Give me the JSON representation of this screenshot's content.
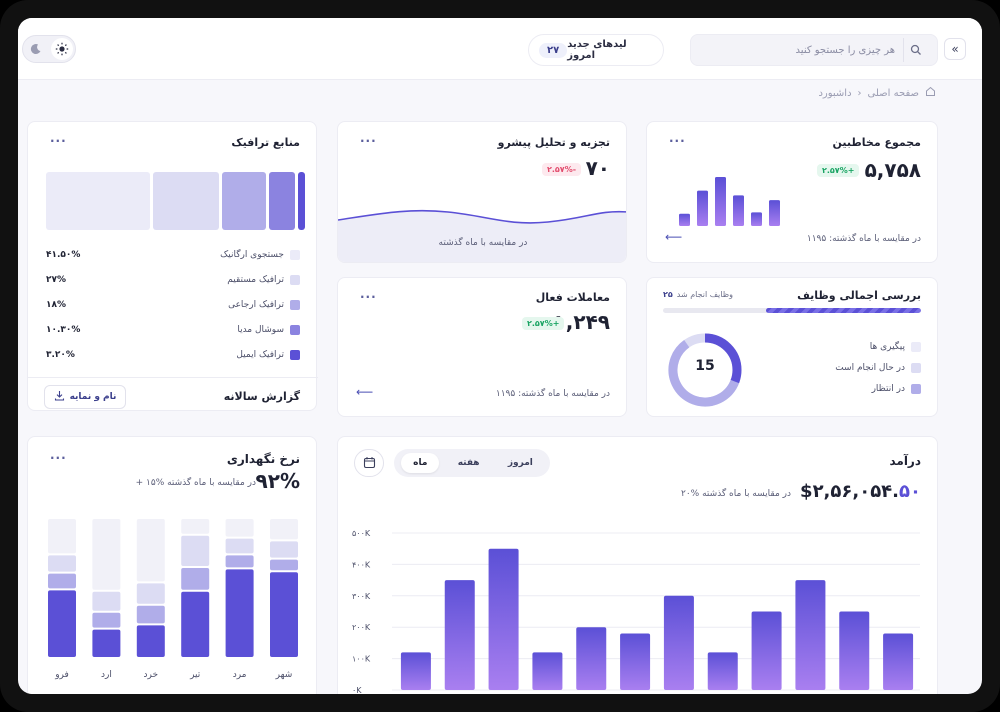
{
  "topbar": {
    "search_placeholder": "هر چیزی را جستجو کنید",
    "leads_label": "لیدهای جدید امروز",
    "leads_count": "۲۷"
  },
  "breadcrumb": {
    "home": "صفحه اصلی",
    "current": "داشبورد"
  },
  "audience": {
    "title": "مجموع مخاطبین",
    "value": "۵,۷۵۸",
    "badge": "۲.۵۷%+",
    "footer": "در مقایسه با ماه گذشته: ۱۱۹۵",
    "bars": [
      0.18,
      0.52,
      0.72,
      0.45,
      0.2,
      0.38
    ]
  },
  "progress": {
    "title": "تجزیه و تحلیل پیشرو",
    "value": "۷۰",
    "badge": "۲.۵۷%-",
    "footer": "در مقایسه با ماه گذشته"
  },
  "traffic": {
    "title": "منابع ترافیک",
    "items": [
      {
        "label": "جستجوی ارگانیک",
        "pct": "۴۱.۵۰%",
        "color": "#ebebf8"
      },
      {
        "label": "ترافیک مستقیم",
        "pct": "۲۷%",
        "color": "#dcdcf3"
      },
      {
        "label": "ترافیک ارجاعی",
        "pct": "۱۸%",
        "color": "#b0ade9"
      },
      {
        "label": "سوشال مدیا",
        "pct": "۱۰.۳۰%",
        "color": "#8b83e0"
      },
      {
        "label": "ترافیک ایمیل",
        "pct": "۳.۲۰%",
        "color": "#5b50d6"
      }
    ],
    "shares": [
      0.415,
      0.27,
      0.18,
      0.103,
      0.032
    ],
    "report_label": "گزارش سالانه",
    "report_button": "نام و نمایه"
  },
  "tasks": {
    "title": "بررسی اجمالی وظایف",
    "done_label": "وظایف انجام شد",
    "done_count": "۲۵",
    "progress": 0.6,
    "center": "15",
    "legend": [
      {
        "label": "پیگیری ها",
        "color": "#ebebf8"
      },
      {
        "label": "در حال انجام است",
        "color": "#dcdcf3"
      },
      {
        "label": "در انتظار",
        "color": "#b0ade9"
      }
    ]
  },
  "deals": {
    "title": "معاملات فعال",
    "value": "۱,۲۴۹",
    "badge": "۲.۵۷%+",
    "footer": "در مقایسه با ماه گذشته: ۱۱۹۵"
  },
  "retention": {
    "title": "نرخ نگهداری",
    "value": "۹۲%",
    "compare": "+ ۱۵% در مقایسه با ماه گذشته",
    "months": [
      "شهر",
      "مرد",
      "تیر",
      "خرد",
      "ارد",
      "فرو"
    ],
    "stacks": [
      [
        0.16,
        0.13,
        0.09,
        0.62
      ],
      [
        0.14,
        0.12,
        0.1,
        0.64
      ],
      [
        0.12,
        0.23,
        0.17,
        0.48
      ],
      [
        0.46,
        0.16,
        0.14,
        0.24
      ],
      [
        0.52,
        0.15,
        0.12,
        0.21
      ],
      [
        0.26,
        0.13,
        0.12,
        0.49
      ]
    ]
  },
  "revenue": {
    "title": "درآمد",
    "value": "$۲,۵۶,۰۵۴.",
    "value_cents": "۵۰",
    "compare": "۲۰% در مقایسه با ماه گذشته",
    "tabs": [
      "امروز",
      "هفته",
      "ماه"
    ],
    "active_tab": 2
  },
  "chart_data": {
    "type": "bar",
    "yticks": [
      "۵۰۰K",
      "۴۰۰K",
      "۳۰۰K",
      "۲۰۰K",
      "۱۰۰K",
      "۰K"
    ],
    "ylim": [
      0,
      500
    ],
    "values": [
      120,
      350,
      450,
      120,
      200,
      180,
      300,
      120,
      250,
      350,
      250,
      180
    ]
  },
  "colors": {
    "accent": "#5b50d6",
    "accent_light": "#a97ff0",
    "green": "#19a463",
    "red": "#e24b6c"
  }
}
